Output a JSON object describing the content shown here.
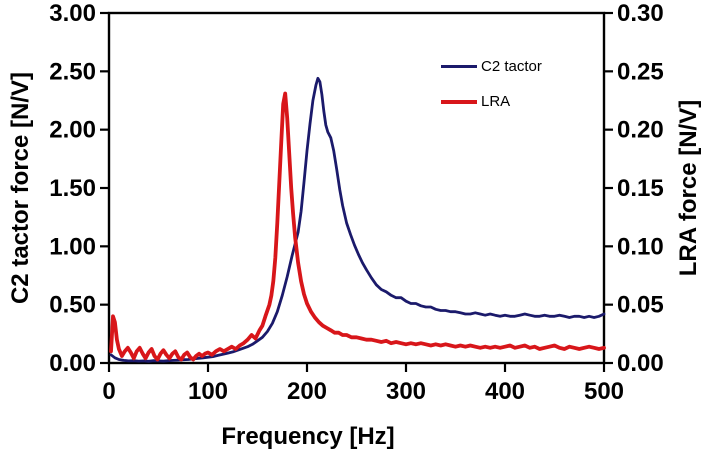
{
  "figure": {
    "background": "#ffffff",
    "frame_color": "#000000",
    "text_color": "#000000",
    "legend": [
      {
        "label": "C2 tactor",
        "color": "#1b1a6b"
      },
      {
        "label": "LRA",
        "color": "#d8161a"
      }
    ]
  },
  "chart_data": {
    "type": "line",
    "title": "",
    "xlabel": "Frequency [Hz]",
    "ylabel_left": "C2 tactor force [N/V]",
    "ylabel_right": "LRA force [N/V]",
    "xlim": [
      0,
      500
    ],
    "ylim_left": [
      0,
      3
    ],
    "ylim_right": [
      0,
      0.3
    ],
    "grid": false,
    "legend_position": "inside-upper-right",
    "x_ticks": [
      {
        "value": 0,
        "label": "0"
      },
      {
        "value": 100,
        "label": "100"
      },
      {
        "value": 200,
        "label": "200"
      },
      {
        "value": 300,
        "label": "300"
      },
      {
        "value": 400,
        "label": "400"
      },
      {
        "value": 500,
        "label": "500"
      }
    ],
    "y_left_ticks": [
      {
        "value": 0,
        "label": "0.00"
      },
      {
        "value": 0.5,
        "label": "0.50"
      },
      {
        "value": 1,
        "label": "1.00"
      },
      {
        "value": 1.5,
        "label": "1.50"
      },
      {
        "value": 2,
        "label": "2.00"
      },
      {
        "value": 2.5,
        "label": "2.50"
      },
      {
        "value": 3,
        "label": "3.00"
      }
    ],
    "y_right_ticks": [
      {
        "value": 0,
        "label": "0.00"
      },
      {
        "value": 0.05,
        "label": "0.05"
      },
      {
        "value": 0.1,
        "label": "0.10"
      },
      {
        "value": 0.15,
        "label": "0.15"
      },
      {
        "value": 0.2,
        "label": "0.20"
      },
      {
        "value": 0.25,
        "label": "0.25"
      },
      {
        "value": 0.3,
        "label": "0.30"
      }
    ],
    "series": [
      {
        "name": "C2 tactor",
        "axis": "left",
        "color": "#1b1a6b",
        "line_width": 2.8,
        "peak": {
          "x": 211,
          "y": 2.44
        },
        "points": [
          [
            2,
            0.07
          ],
          [
            6,
            0.045
          ],
          [
            10,
            0.03
          ],
          [
            15,
            0.022
          ],
          [
            20,
            0.018
          ],
          [
            25,
            0.02
          ],
          [
            30,
            0.016
          ],
          [
            35,
            0.018
          ],
          [
            40,
            0.015
          ],
          [
            45,
            0.02
          ],
          [
            50,
            0.018
          ],
          [
            55,
            0.016
          ],
          [
            60,
            0.02
          ],
          [
            65,
            0.022
          ],
          [
            70,
            0.025
          ],
          [
            75,
            0.028
          ],
          [
            80,
            0.03
          ],
          [
            85,
            0.035
          ],
          [
            90,
            0.04
          ],
          [
            95,
            0.045
          ],
          [
            100,
            0.05
          ],
          [
            105,
            0.055
          ],
          [
            110,
            0.065
          ],
          [
            115,
            0.075
          ],
          [
            120,
            0.085
          ],
          [
            125,
            0.095
          ],
          [
            130,
            0.11
          ],
          [
            135,
            0.125
          ],
          [
            140,
            0.14
          ],
          [
            145,
            0.16
          ],
          [
            150,
            0.19
          ],
          [
            155,
            0.22
          ],
          [
            160,
            0.27
          ],
          [
            165,
            0.34
          ],
          [
            170,
            0.44
          ],
          [
            175,
            0.58
          ],
          [
            180,
            0.74
          ],
          [
            185,
            0.92
          ],
          [
            188,
            1.02
          ],
          [
            191,
            1.12
          ],
          [
            194,
            1.3
          ],
          [
            197,
            1.55
          ],
          [
            200,
            1.82
          ],
          [
            203,
            2.05
          ],
          [
            206,
            2.25
          ],
          [
            209,
            2.38
          ],
          [
            211,
            2.44
          ],
          [
            213,
            2.41
          ],
          [
            215,
            2.3
          ],
          [
            217,
            2.16
          ],
          [
            219,
            2.04
          ],
          [
            221,
            1.98
          ],
          [
            224,
            1.93
          ],
          [
            227,
            1.82
          ],
          [
            230,
            1.66
          ],
          [
            233,
            1.49
          ],
          [
            236,
            1.35
          ],
          [
            240,
            1.2
          ],
          [
            244,
            1.1
          ],
          [
            248,
            1.01
          ],
          [
            252,
            0.93
          ],
          [
            256,
            0.86
          ],
          [
            260,
            0.8
          ],
          [
            265,
            0.73
          ],
          [
            270,
            0.67
          ],
          [
            275,
            0.63
          ],
          [
            280,
            0.61
          ],
          [
            285,
            0.58
          ],
          [
            290,
            0.56
          ],
          [
            295,
            0.56
          ],
          [
            300,
            0.53
          ],
          [
            305,
            0.51
          ],
          [
            310,
            0.51
          ],
          [
            315,
            0.49
          ],
          [
            320,
            0.48
          ],
          [
            325,
            0.48
          ],
          [
            330,
            0.46
          ],
          [
            335,
            0.45
          ],
          [
            340,
            0.45
          ],
          [
            345,
            0.44
          ],
          [
            350,
            0.44
          ],
          [
            355,
            0.43
          ],
          [
            360,
            0.42
          ],
          [
            365,
            0.42
          ],
          [
            370,
            0.43
          ],
          [
            375,
            0.42
          ],
          [
            380,
            0.41
          ],
          [
            385,
            0.42
          ],
          [
            390,
            0.41
          ],
          [
            395,
            0.4
          ],
          [
            400,
            0.41
          ],
          [
            405,
            0.4
          ],
          [
            410,
            0.4
          ],
          [
            415,
            0.41
          ],
          [
            420,
            0.42
          ],
          [
            425,
            0.41
          ],
          [
            430,
            0.4
          ],
          [
            435,
            0.4
          ],
          [
            440,
            0.41
          ],
          [
            445,
            0.4
          ],
          [
            450,
            0.4
          ],
          [
            455,
            0.41
          ],
          [
            460,
            0.4
          ],
          [
            465,
            0.39
          ],
          [
            470,
            0.4
          ],
          [
            475,
            0.4
          ],
          [
            480,
            0.39
          ],
          [
            485,
            0.4
          ],
          [
            490,
            0.39
          ],
          [
            495,
            0.4
          ],
          [
            500,
            0.42
          ]
        ]
      },
      {
        "name": "LRA",
        "axis": "right",
        "color": "#d8161a",
        "line_width": 3.8,
        "peak": {
          "x": 178,
          "y": 0.231
        },
        "points": [
          [
            2,
            0.01
          ],
          [
            4,
            0.04
          ],
          [
            6,
            0.035
          ],
          [
            8,
            0.02
          ],
          [
            10,
            0.012
          ],
          [
            13,
            0.006
          ],
          [
            16,
            0.01
          ],
          [
            19,
            0.013
          ],
          [
            22,
            0.009
          ],
          [
            25,
            0.004
          ],
          [
            28,
            0.01
          ],
          [
            31,
            0.013
          ],
          [
            34,
            0.008
          ],
          [
            37,
            0.004
          ],
          [
            40,
            0.009
          ],
          [
            43,
            0.012
          ],
          [
            46,
            0.006
          ],
          [
            49,
            0.003
          ],
          [
            52,
            0.008
          ],
          [
            55,
            0.011
          ],
          [
            58,
            0.007
          ],
          [
            61,
            0.004
          ],
          [
            64,
            0.008
          ],
          [
            67,
            0.01
          ],
          [
            70,
            0.005
          ],
          [
            73,
            0.003
          ],
          [
            76,
            0.007
          ],
          [
            79,
            0.009
          ],
          [
            82,
            0.005
          ],
          [
            85,
            0.003
          ],
          [
            88,
            0.006
          ],
          [
            91,
            0.008
          ],
          [
            94,
            0.006
          ],
          [
            97,
            0.008
          ],
          [
            100,
            0.009
          ],
          [
            104,
            0.007
          ],
          [
            108,
            0.01
          ],
          [
            112,
            0.012
          ],
          [
            116,
            0.01
          ],
          [
            120,
            0.012
          ],
          [
            124,
            0.014
          ],
          [
            128,
            0.012
          ],
          [
            132,
            0.015
          ],
          [
            136,
            0.017
          ],
          [
            140,
            0.02
          ],
          [
            144,
            0.024
          ],
          [
            148,
            0.021
          ],
          [
            152,
            0.028
          ],
          [
            155,
            0.032
          ],
          [
            158,
            0.04
          ],
          [
            160,
            0.045
          ],
          [
            162,
            0.05
          ],
          [
            164,
            0.058
          ],
          [
            166,
            0.07
          ],
          [
            168,
            0.09
          ],
          [
            170,
            0.12
          ],
          [
            172,
            0.155
          ],
          [
            174,
            0.19
          ],
          [
            176,
            0.222
          ],
          [
            178,
            0.231
          ],
          [
            180,
            0.21
          ],
          [
            182,
            0.18
          ],
          [
            184,
            0.15
          ],
          [
            186,
            0.128
          ],
          [
            188,
            0.108
          ],
          [
            191,
            0.086
          ],
          [
            194,
            0.07
          ],
          [
            197,
            0.059
          ],
          [
            200,
            0.051
          ],
          [
            204,
            0.044
          ],
          [
            208,
            0.039
          ],
          [
            212,
            0.035
          ],
          [
            216,
            0.032
          ],
          [
            220,
            0.03
          ],
          [
            224,
            0.028
          ],
          [
            228,
            0.026
          ],
          [
            232,
            0.026
          ],
          [
            236,
            0.024
          ],
          [
            240,
            0.024
          ],
          [
            245,
            0.022
          ],
          [
            250,
            0.022
          ],
          [
            255,
            0.021
          ],
          [
            260,
            0.02
          ],
          [
            265,
            0.02
          ],
          [
            270,
            0.019
          ],
          [
            275,
            0.018
          ],
          [
            280,
            0.019
          ],
          [
            285,
            0.017
          ],
          [
            290,
            0.018
          ],
          [
            295,
            0.017
          ],
          [
            300,
            0.016
          ],
          [
            305,
            0.017
          ],
          [
            310,
            0.016
          ],
          [
            315,
            0.017
          ],
          [
            320,
            0.016
          ],
          [
            325,
            0.015
          ],
          [
            330,
            0.016
          ],
          [
            335,
            0.015
          ],
          [
            340,
            0.016
          ],
          [
            345,
            0.015
          ],
          [
            350,
            0.014
          ],
          [
            355,
            0.015
          ],
          [
            360,
            0.014
          ],
          [
            365,
            0.015
          ],
          [
            370,
            0.014
          ],
          [
            375,
            0.013
          ],
          [
            380,
            0.014
          ],
          [
            385,
            0.013
          ],
          [
            390,
            0.014
          ],
          [
            395,
            0.013
          ],
          [
            400,
            0.014
          ],
          [
            405,
            0.015
          ],
          [
            410,
            0.013
          ],
          [
            415,
            0.014
          ],
          [
            420,
            0.015
          ],
          [
            425,
            0.013
          ],
          [
            430,
            0.014
          ],
          [
            435,
            0.012
          ],
          [
            440,
            0.013
          ],
          [
            445,
            0.014
          ],
          [
            450,
            0.015
          ],
          [
            455,
            0.013
          ],
          [
            460,
            0.012
          ],
          [
            465,
            0.014
          ],
          [
            470,
            0.013
          ],
          [
            475,
            0.012
          ],
          [
            480,
            0.013
          ],
          [
            485,
            0.014
          ],
          [
            490,
            0.013
          ],
          [
            495,
            0.012
          ],
          [
            500,
            0.013
          ]
        ]
      }
    ]
  }
}
